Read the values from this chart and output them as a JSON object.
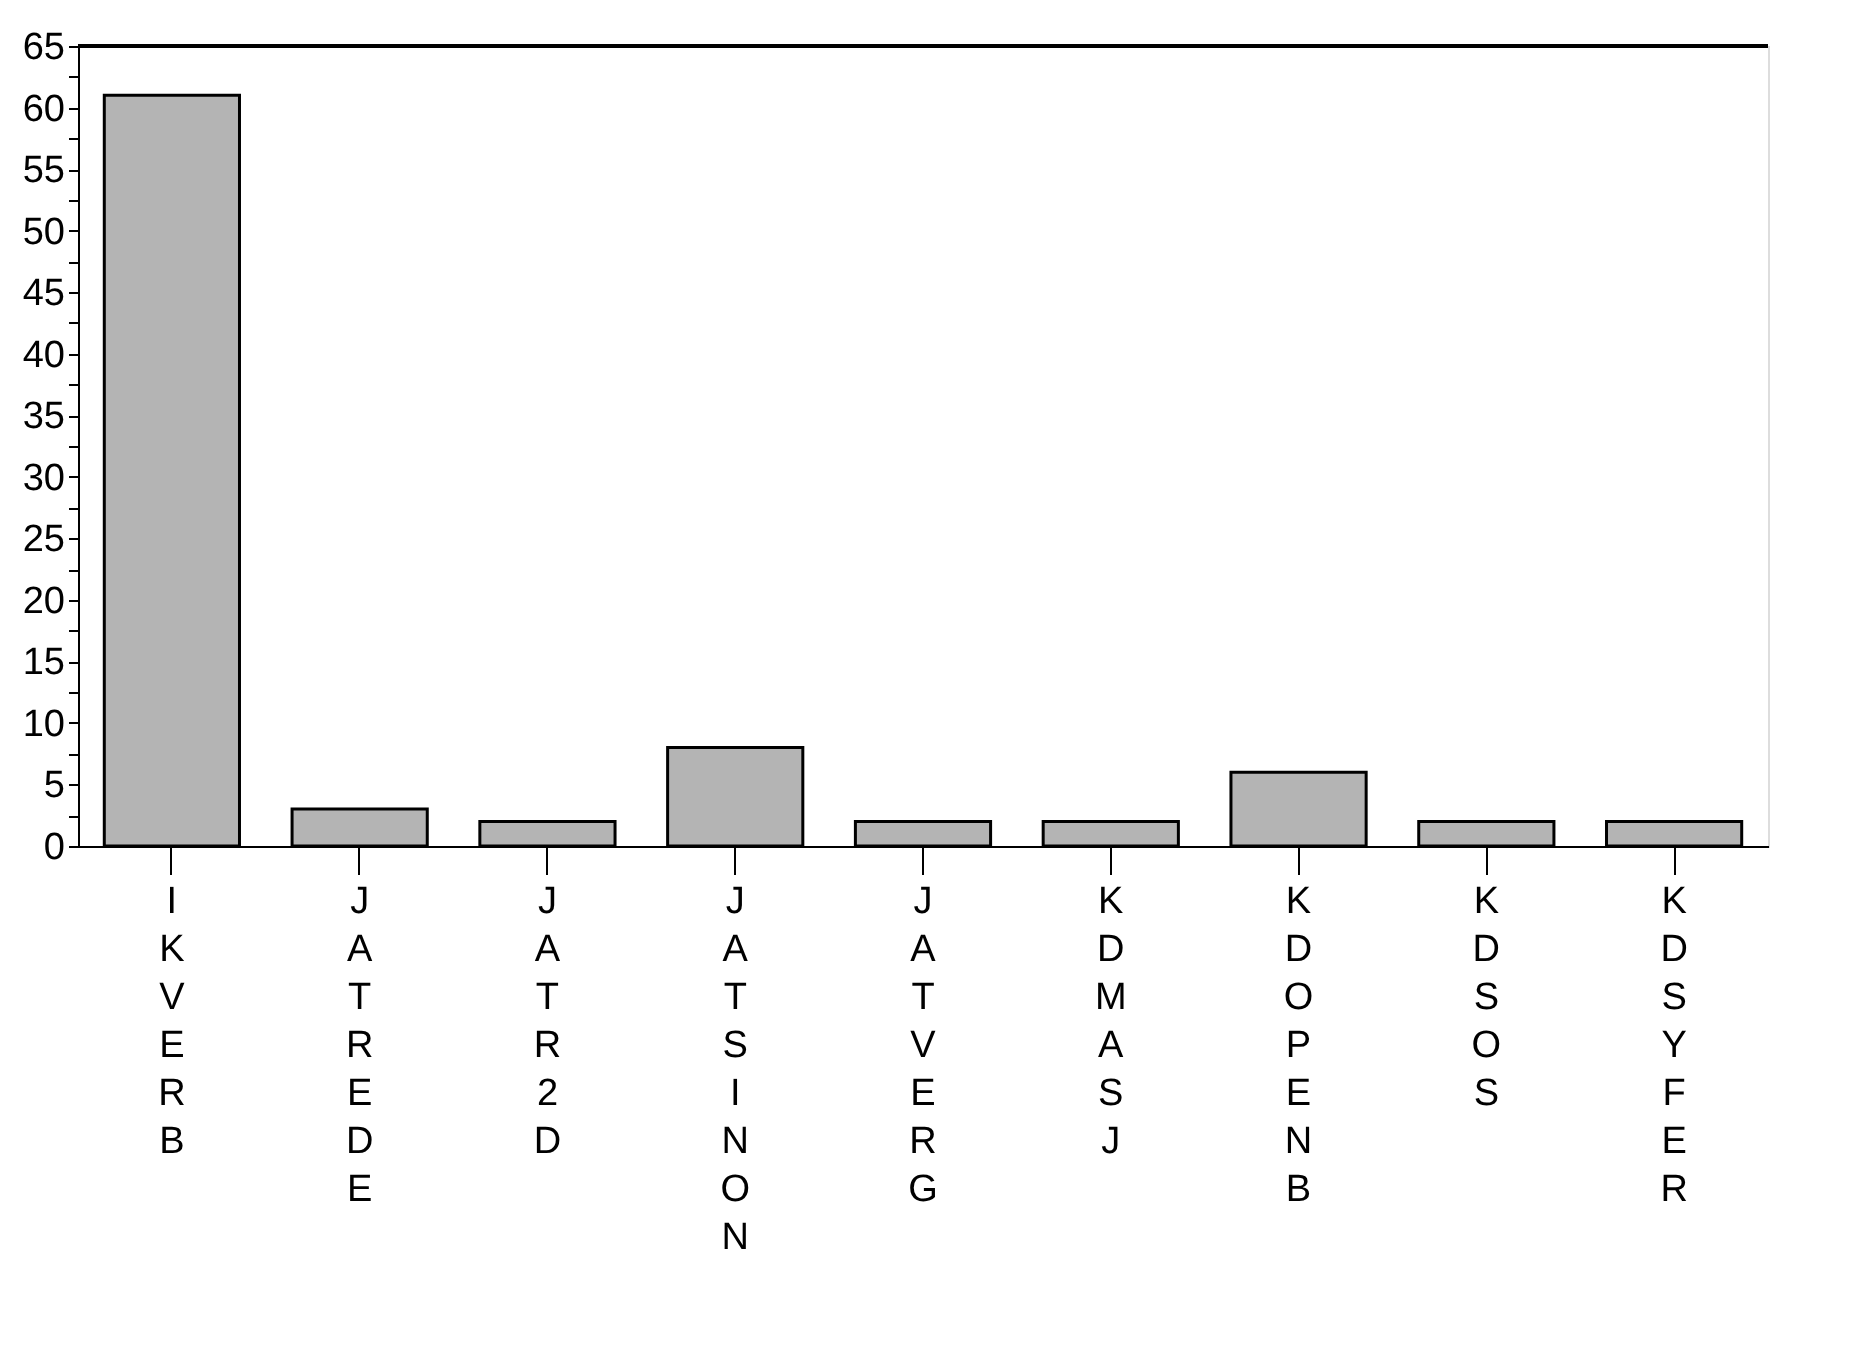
{
  "chart_data": {
    "type": "bar",
    "categories": [
      "IKVERB",
      "JATREDE",
      "JATR2D",
      "JATSINON",
      "JATVERG",
      "KDMASJ",
      "KDOPENB",
      "KDSOS",
      "KDSYFER"
    ],
    "values": [
      61,
      3,
      2,
      8,
      2,
      2,
      6,
      2,
      2
    ],
    "color": "#b4b4b4",
    "ylim": [
      0,
      65
    ],
    "yticks": [
      0,
      {
        "value": 2.5,
        "label": null
      },
      5,
      {
        "value": 7.5,
        "label": null
      },
      10,
      {
        "value": 12.5,
        "label": null
      },
      15,
      {
        "value": 17.5,
        "label": null
      },
      20,
      {
        "value": 22.5,
        "label": null
      },
      25,
      {
        "value": 27.5,
        "label": null
      },
      30,
      {
        "value": 32.5,
        "label": null
      },
      35,
      {
        "value": 37.5,
        "label": null
      },
      40,
      {
        "value": 42.5,
        "label": null
      },
      45,
      {
        "value": 47.5,
        "label": null
      },
      50,
      {
        "value": 52.5,
        "label": null
      },
      55,
      {
        "value": 57.5,
        "label": null
      },
      60,
      {
        "value": 62.5,
        "label": null
      },
      65
    ],
    "grid": false
  }
}
